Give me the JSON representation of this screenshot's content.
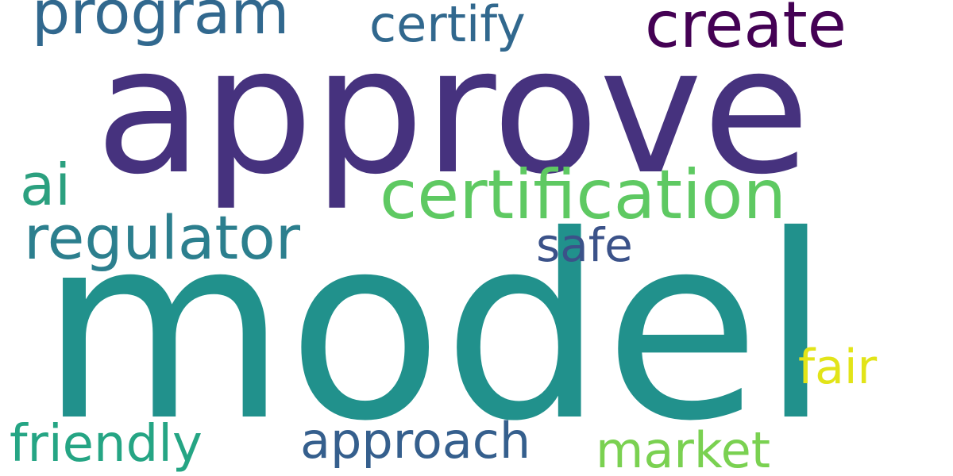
{
  "words": [
    {
      "id": "approve",
      "text": "approve",
      "color": "#46327e"
    },
    {
      "id": "model",
      "text": "model",
      "color": "#21918c"
    },
    {
      "id": "certification",
      "text": "certification",
      "color": "#5ec962"
    },
    {
      "id": "create",
      "text": "create",
      "color": "#440154"
    },
    {
      "id": "program",
      "text": "program",
      "color": "#31688e"
    },
    {
      "id": "regulator",
      "text": "regulator",
      "color": "#2c7f8e"
    },
    {
      "id": "certify",
      "text": "certify",
      "color": "#31688e"
    },
    {
      "id": "approach",
      "text": "approach",
      "color": "#355f8d"
    },
    {
      "id": "friendly",
      "text": "friendly",
      "color": "#25a584"
    },
    {
      "id": "market",
      "text": "market",
      "color": "#7ad151"
    },
    {
      "id": "ai",
      "text": "ai",
      "color": "#2ba07f"
    },
    {
      "id": "safe",
      "text": "safe",
      "color": "#3b5289"
    },
    {
      "id": "fair",
      "text": "fair",
      "color": "#e2e418"
    }
  ]
}
